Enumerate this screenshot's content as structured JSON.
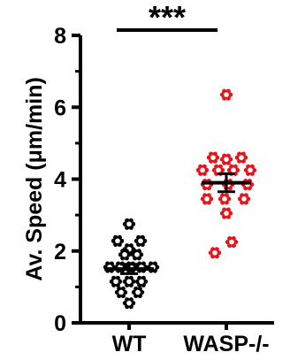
{
  "chart_data": {
    "type": "scatter",
    "ylabel": "Av. Speed (μm/min)",
    "ylim": [
      0,
      8
    ],
    "yticks": [
      0,
      2,
      4,
      6,
      8
    ],
    "categories": [
      "WT",
      "WASP-/-"
    ],
    "grid": false,
    "significance": "***",
    "series": [
      {
        "category": "WT",
        "color": "#000000",
        "marker": "flower-open",
        "mean": 1.5,
        "sem": 0.13,
        "points": [
          {
            "offset": 0.0,
            "y": 2.75
          },
          {
            "offset": -0.13,
            "y": 2.28
          },
          {
            "offset": 0.13,
            "y": 2.28
          },
          {
            "offset": 0.0,
            "y": 2.05
          },
          {
            "offset": -0.05,
            "y": 1.9
          },
          {
            "offset": 0.09,
            "y": 1.9
          },
          {
            "offset": -0.22,
            "y": 1.55
          },
          {
            "offset": -0.1,
            "y": 1.55
          },
          {
            "offset": 0.02,
            "y": 1.55
          },
          {
            "offset": 0.14,
            "y": 1.55
          },
          {
            "offset": 0.27,
            "y": 1.55
          },
          {
            "offset": -0.15,
            "y": 1.15
          },
          {
            "offset": 0.0,
            "y": 1.15
          },
          {
            "offset": 0.14,
            "y": 1.15
          },
          {
            "offset": -0.09,
            "y": 0.85
          },
          {
            "offset": 0.1,
            "y": 0.85
          },
          {
            "offset": 0.0,
            "y": 0.55
          }
        ]
      },
      {
        "category": "WASP-/-",
        "color": "#e8141c",
        "marker": "flower-open",
        "mean": 3.9,
        "sem": 0.25,
        "points": [
          {
            "offset": 0.0,
            "y": 6.35
          },
          {
            "offset": -0.15,
            "y": 4.6
          },
          {
            "offset": 0.0,
            "y": 4.55
          },
          {
            "offset": 0.17,
            "y": 4.6
          },
          {
            "offset": -0.27,
            "y": 4.25
          },
          {
            "offset": -0.09,
            "y": 4.25
          },
          {
            "offset": 0.08,
            "y": 4.25
          },
          {
            "offset": 0.27,
            "y": 4.25
          },
          {
            "offset": -0.22,
            "y": 3.85
          },
          {
            "offset": 0.02,
            "y": 3.85
          },
          {
            "offset": 0.24,
            "y": 3.85
          },
          {
            "offset": -0.22,
            "y": 3.45
          },
          {
            "offset": -0.02,
            "y": 3.45
          },
          {
            "offset": 0.2,
            "y": 3.45
          },
          {
            "offset": 0.0,
            "y": 3.05
          },
          {
            "offset": 0.06,
            "y": 2.25
          },
          {
            "offset": -0.13,
            "y": 1.95
          }
        ]
      }
    ]
  }
}
